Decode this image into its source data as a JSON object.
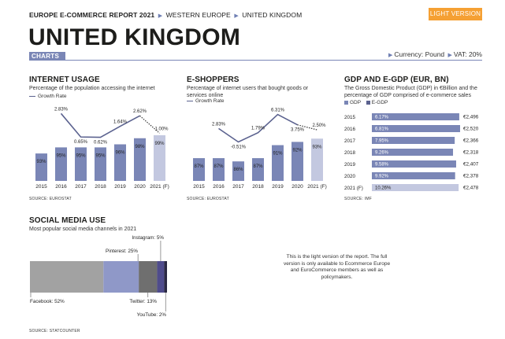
{
  "header": {
    "breadcrumb": [
      "EUROPE E-COMMERCE REPORT 2021",
      "WESTERN EUROPE",
      "UNITED KINGDOM"
    ],
    "light_button": "LIGHT VERSION",
    "title": "UNITED KINGDOM",
    "tab": "CHARTS",
    "currency": "Currency: Pound",
    "vat": "VAT: 20%"
  },
  "colors": {
    "bar": "#7a86b6",
    "bar_forecast": "#c3c8e0",
    "line": "#5b628f",
    "egdp": "#5b628f",
    "accent": "#f5a033"
  },
  "internet_usage": {
    "title": "INTERNET USAGE",
    "subtitle": "Percentage of the population accessing the internet",
    "legend": "Growth Rate",
    "source": "SOURCE: EUROSTAT"
  },
  "e_shoppers": {
    "title": "E-SHOPPERS",
    "subtitle": "Percentage of internet users that bought goods or services online",
    "legend": "Growth Rate",
    "source": "SOURCE: EUROSTAT"
  },
  "gdp": {
    "title": "GDP AND E-GDP (EUR, BN)",
    "subtitle": "The Gross Domestic Product (GDP) in €Billion and the percentage of GDP comprised of e-commerce sales",
    "legend_gdp": "GDP",
    "legend_egdp": "E-GDP",
    "source": "SOURCE: IMF"
  },
  "social": {
    "title": "SOCIAL MEDIA USE",
    "subtitle": "Most popular social media channels in 2021",
    "source": "SOURCE: STATCOUNTER"
  },
  "note": "This is the light version of the report. The full version is only available to Ecommerce Europe and EuroCommerce members as well as policymakers.",
  "chart_data": [
    {
      "id": "internet_usage",
      "type": "bar",
      "categories": [
        "2015",
        "2016",
        "2017",
        "2018",
        "2019",
        "2020",
        "2021 (F)"
      ],
      "values": [
        93,
        95,
        95,
        95,
        96,
        98,
        99
      ],
      "value_labels": [
        "93%",
        "95%",
        "95%",
        "95%",
        "96%",
        "98%",
        "99%"
      ],
      "growth": [
        2.83,
        0.65,
        0.62,
        1.64,
        2.62,
        1.0
      ],
      "growth_labels": [
        "2.83%",
        "0.65%",
        "0.62%",
        "1.64%",
        "2.62%",
        "1.00%"
      ],
      "forecast_index": 6
    },
    {
      "id": "e_shoppers",
      "type": "bar",
      "categories": [
        "2015",
        "2016",
        "2017",
        "2018",
        "2019",
        "2020",
        "2021 (F)"
      ],
      "values": [
        87,
        87,
        86,
        87,
        91,
        92,
        93
      ],
      "value_labels": [
        "87%",
        "87%",
        "86%",
        "87%",
        "91%",
        "92%",
        "93%"
      ],
      "growth": [
        2.83,
        -0.51,
        1.79,
        6.31,
        3.75,
        2.5
      ],
      "growth_labels": [
        "2.83%",
        "-0.51%",
        "1.79%",
        "6.31%",
        "3.75%",
        "2.50%"
      ],
      "forecast_index": 6
    },
    {
      "id": "gdp",
      "type": "bar",
      "orientation": "horizontal",
      "categories": [
        "2015",
        "2016",
        "2017",
        "2018",
        "2019",
        "2020",
        "2021 (F)"
      ],
      "gdp": [
        2496,
        2520,
        2366,
        2318,
        2407,
        2378,
        2478
      ],
      "gdp_labels": [
        "€2,496",
        "€2,520",
        "€2,366",
        "€2,318",
        "€2,407",
        "€2,378",
        "€2,478"
      ],
      "egdp_pct": [
        6.17,
        6.81,
        7.95,
        9.26,
        9.58,
        9.92,
        10.26
      ],
      "egdp_labels": [
        "6.17%",
        "6.81%",
        "7.95%",
        "9.26%",
        "9.58%",
        "9.92%",
        "10.26%"
      ],
      "forecast_index": 6
    },
    {
      "id": "social",
      "type": "bar",
      "orientation": "stacked-horizontal",
      "series": [
        {
          "name": "Facebook",
          "value": 52,
          "label": "Facebook: 52%"
        },
        {
          "name": "Pinterest",
          "value": 25,
          "label": "Pinterest: 25%"
        },
        {
          "name": "Twitter",
          "value": 13,
          "label": "Twitter: 13%"
        },
        {
          "name": "Instagram",
          "value": 5,
          "label": "Instagram: 5%"
        },
        {
          "name": "YouTube",
          "value": 2,
          "label": "YouTube: 2%"
        }
      ],
      "colors": [
        "#a2a2a2",
        "#8f98c8",
        "#6f6f6f",
        "#4f4c8c",
        "#2b2a44"
      ]
    }
  ]
}
